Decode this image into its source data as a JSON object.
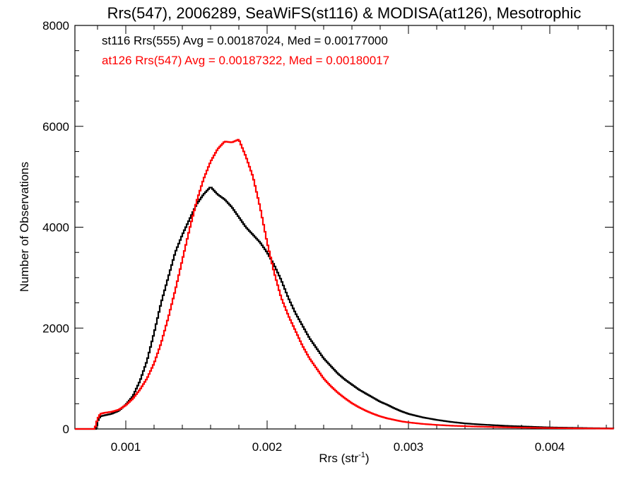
{
  "chart_data": {
    "type": "line",
    "style": "step histogram",
    "title": "Rrs(547), 2006289, SeaWiFS(st116) & MODISA(at126), Mesotrophic",
    "xlabel_main": "Rrs (str",
    "xlabel_sup": "-1",
    "xlabel_close": ")",
    "ylabel": "Number of Observations",
    "xlim": [
      0.00064,
      0.00445
    ],
    "ylim": [
      0,
      8000
    ],
    "x_ticks": [
      0.001,
      0.002,
      0.003,
      0.004
    ],
    "x_tick_labels": [
      "0.001",
      "0.002",
      "0.003",
      "0.004"
    ],
    "y_ticks": [
      0,
      2000,
      4000,
      6000,
      8000
    ],
    "y_tick_labels": [
      "0",
      "2000",
      "4000",
      "6000",
      "8000"
    ],
    "grid": false,
    "legend_position": "top-left",
    "series": [
      {
        "name": "st116 Rrs(555) Avg = 0.00187024, Med = 0.00177000",
        "color": "#000000",
        "points": [
          [
            0.00064,
            0
          ],
          [
            0.00075,
            0
          ],
          [
            0.00079,
            0
          ],
          [
            0.0008,
            150
          ],
          [
            0.00082,
            250
          ],
          [
            0.00085,
            270
          ],
          [
            0.0009,
            300
          ],
          [
            0.00095,
            360
          ],
          [
            0.001,
            480
          ],
          [
            0.00105,
            650
          ],
          [
            0.0011,
            950
          ],
          [
            0.00115,
            1350
          ],
          [
            0.0012,
            1900
          ],
          [
            0.00125,
            2500
          ],
          [
            0.0013,
            3000
          ],
          [
            0.00135,
            3500
          ],
          [
            0.0014,
            3850
          ],
          [
            0.00145,
            4150
          ],
          [
            0.0015,
            4450
          ],
          [
            0.00155,
            4650
          ],
          [
            0.0016,
            4800
          ],
          [
            0.00165,
            4650
          ],
          [
            0.0017,
            4550
          ],
          [
            0.00175,
            4400
          ],
          [
            0.0018,
            4200
          ],
          [
            0.00185,
            4000
          ],
          [
            0.0019,
            3850
          ],
          [
            0.00195,
            3700
          ],
          [
            0.002,
            3500
          ],
          [
            0.00205,
            3250
          ],
          [
            0.0021,
            2950
          ],
          [
            0.00215,
            2600
          ],
          [
            0.0022,
            2300
          ],
          [
            0.00225,
            2050
          ],
          [
            0.0023,
            1800
          ],
          [
            0.00235,
            1600
          ],
          [
            0.0024,
            1400
          ],
          [
            0.00245,
            1250
          ],
          [
            0.0025,
            1100
          ],
          [
            0.00255,
            980
          ],
          [
            0.0026,
            880
          ],
          [
            0.00265,
            780
          ],
          [
            0.0027,
            700
          ],
          [
            0.00275,
            620
          ],
          [
            0.0028,
            540
          ],
          [
            0.00285,
            480
          ],
          [
            0.0029,
            410
          ],
          [
            0.00295,
            350
          ],
          [
            0.003,
            300
          ],
          [
            0.0031,
            230
          ],
          [
            0.0032,
            180
          ],
          [
            0.0033,
            140
          ],
          [
            0.0034,
            110
          ],
          [
            0.0035,
            90
          ],
          [
            0.0036,
            75
          ],
          [
            0.0037,
            60
          ],
          [
            0.0038,
            50
          ],
          [
            0.0039,
            40
          ],
          [
            0.004,
            30
          ],
          [
            0.0041,
            25
          ],
          [
            0.0042,
            20
          ],
          [
            0.0043,
            15
          ],
          [
            0.0044,
            12
          ],
          [
            0.00445,
            10
          ]
        ]
      },
      {
        "name": "at126 Rrs(547) Avg = 0.00187322, Med = 0.00180017",
        "color": "#ff0000",
        "points": [
          [
            0.00064,
            0
          ],
          [
            0.00075,
            0
          ],
          [
            0.00078,
            0
          ],
          [
            0.0008,
            200
          ],
          [
            0.00082,
            300
          ],
          [
            0.00085,
            320
          ],
          [
            0.0009,
            340
          ],
          [
            0.00095,
            380
          ],
          [
            0.001,
            470
          ],
          [
            0.00105,
            600
          ],
          [
            0.0011,
            780
          ],
          [
            0.00115,
            1000
          ],
          [
            0.0012,
            1300
          ],
          [
            0.00125,
            1700
          ],
          [
            0.0013,
            2200
          ],
          [
            0.00135,
            2750
          ],
          [
            0.0014,
            3350
          ],
          [
            0.00145,
            3950
          ],
          [
            0.0015,
            4500
          ],
          [
            0.00155,
            4950
          ],
          [
            0.0016,
            5300
          ],
          [
            0.00165,
            5550
          ],
          [
            0.0017,
            5700
          ],
          [
            0.00175,
            5680
          ],
          [
            0.0018,
            5740
          ],
          [
            0.00185,
            5400
          ],
          [
            0.0019,
            5000
          ],
          [
            0.00195,
            4400
          ],
          [
            0.002,
            3700
          ],
          [
            0.00205,
            3100
          ],
          [
            0.0021,
            2600
          ],
          [
            0.00215,
            2250
          ],
          [
            0.0022,
            1950
          ],
          [
            0.00225,
            1650
          ],
          [
            0.0023,
            1400
          ],
          [
            0.00235,
            1200
          ],
          [
            0.0024,
            1000
          ],
          [
            0.00245,
            850
          ],
          [
            0.0025,
            720
          ],
          [
            0.00255,
            610
          ],
          [
            0.0026,
            510
          ],
          [
            0.00265,
            430
          ],
          [
            0.0027,
            360
          ],
          [
            0.00275,
            300
          ],
          [
            0.0028,
            250
          ],
          [
            0.00285,
            210
          ],
          [
            0.0029,
            180
          ],
          [
            0.00295,
            150
          ],
          [
            0.003,
            130
          ],
          [
            0.0031,
            100
          ],
          [
            0.0032,
            80
          ],
          [
            0.0033,
            65
          ],
          [
            0.0034,
            55
          ],
          [
            0.0035,
            45
          ],
          [
            0.0036,
            38
          ],
          [
            0.0037,
            32
          ],
          [
            0.0038,
            27
          ],
          [
            0.0039,
            22
          ],
          [
            0.004,
            18
          ],
          [
            0.0041,
            15
          ],
          [
            0.0042,
            12
          ],
          [
            0.0043,
            10
          ],
          [
            0.0044,
            8
          ],
          [
            0.00445,
            7
          ]
        ]
      }
    ]
  }
}
